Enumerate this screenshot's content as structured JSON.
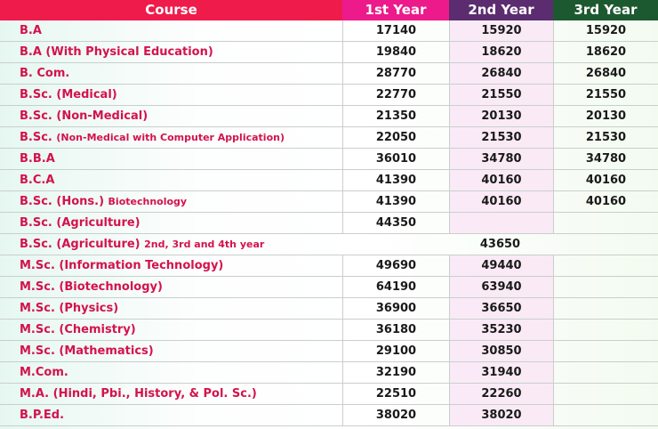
{
  "colors": {
    "course_header": "#ee1b4b",
    "year1_header": "#ec1a8a",
    "year2_header": "#5b2c6f",
    "year3_header": "#1d5930",
    "course_text": "#d4124c"
  },
  "headers": [
    "Course",
    "1st Year",
    "2nd Year",
    "3rd Year"
  ],
  "rows": [
    {
      "course": "B.A",
      "y1": "17140",
      "y2": "15920",
      "y3": "15920"
    },
    {
      "course": "B.A (With Physical Education)",
      "y1": "19840",
      "y2": "18620",
      "y3": "18620"
    },
    {
      "course": "B. Com.",
      "y1": "28770",
      "y2": "26840",
      "y3": "26840"
    },
    {
      "course": "B.Sc. (Medical)",
      "y1": "22770",
      "y2": "21550",
      "y3": "21550"
    },
    {
      "course": "B.Sc. (Non-Medical)",
      "y1": "21350",
      "y2": "20130",
      "y3": "20130"
    },
    {
      "course": "B.Sc.",
      "course_note": "(Non-Medical with Computer Application)",
      "y1": "22050",
      "y2": "21530",
      "y3": "21530"
    },
    {
      "course": "B.B.A",
      "y1": "36010",
      "y2": "34780",
      "y3": "34780"
    },
    {
      "course": "B.C.A",
      "y1": "41390",
      "y2": "40160",
      "y3": "40160"
    },
    {
      "course": "B.Sc. (Hons.)",
      "course_note": "Biotechnology",
      "y1": "41390",
      "y2": "40160",
      "y3": "40160"
    },
    {
      "course": "B.Sc. (Agriculture)",
      "y1": "44350",
      "y2": "",
      "y3": ""
    },
    {
      "course": "B.Sc. (Agriculture)",
      "course_note": "2nd, 3rd and 4th year",
      "span": "43650"
    },
    {
      "course": "M.Sc. (Information Technology)",
      "y1": "49690",
      "y2": "49440",
      "y3": ""
    },
    {
      "course": "M.Sc. (Biotechnology)",
      "y1": "64190",
      "y2": "63940",
      "y3": ""
    },
    {
      "course": "M.Sc. (Physics)",
      "y1": "36900",
      "y2": "36650",
      "y3": ""
    },
    {
      "course": "M.Sc. (Chemistry)",
      "y1": "36180",
      "y2": "35230",
      "y3": ""
    },
    {
      "course": "M.Sc. (Mathematics)",
      "y1": "29100",
      "y2": "30850",
      "y3": ""
    },
    {
      "course": "M.Com.",
      "y1": "32190",
      "y2": "31940",
      "y3": ""
    },
    {
      "course": "M.A. (Hindi, Pbi., History, & Pol. Sc.)",
      "y1": "22510",
      "y2": "22260",
      "y3": ""
    },
    {
      "course": "B.P.Ed.",
      "y1": "38020",
      "y2": "38020",
      "y3": ""
    }
  ]
}
